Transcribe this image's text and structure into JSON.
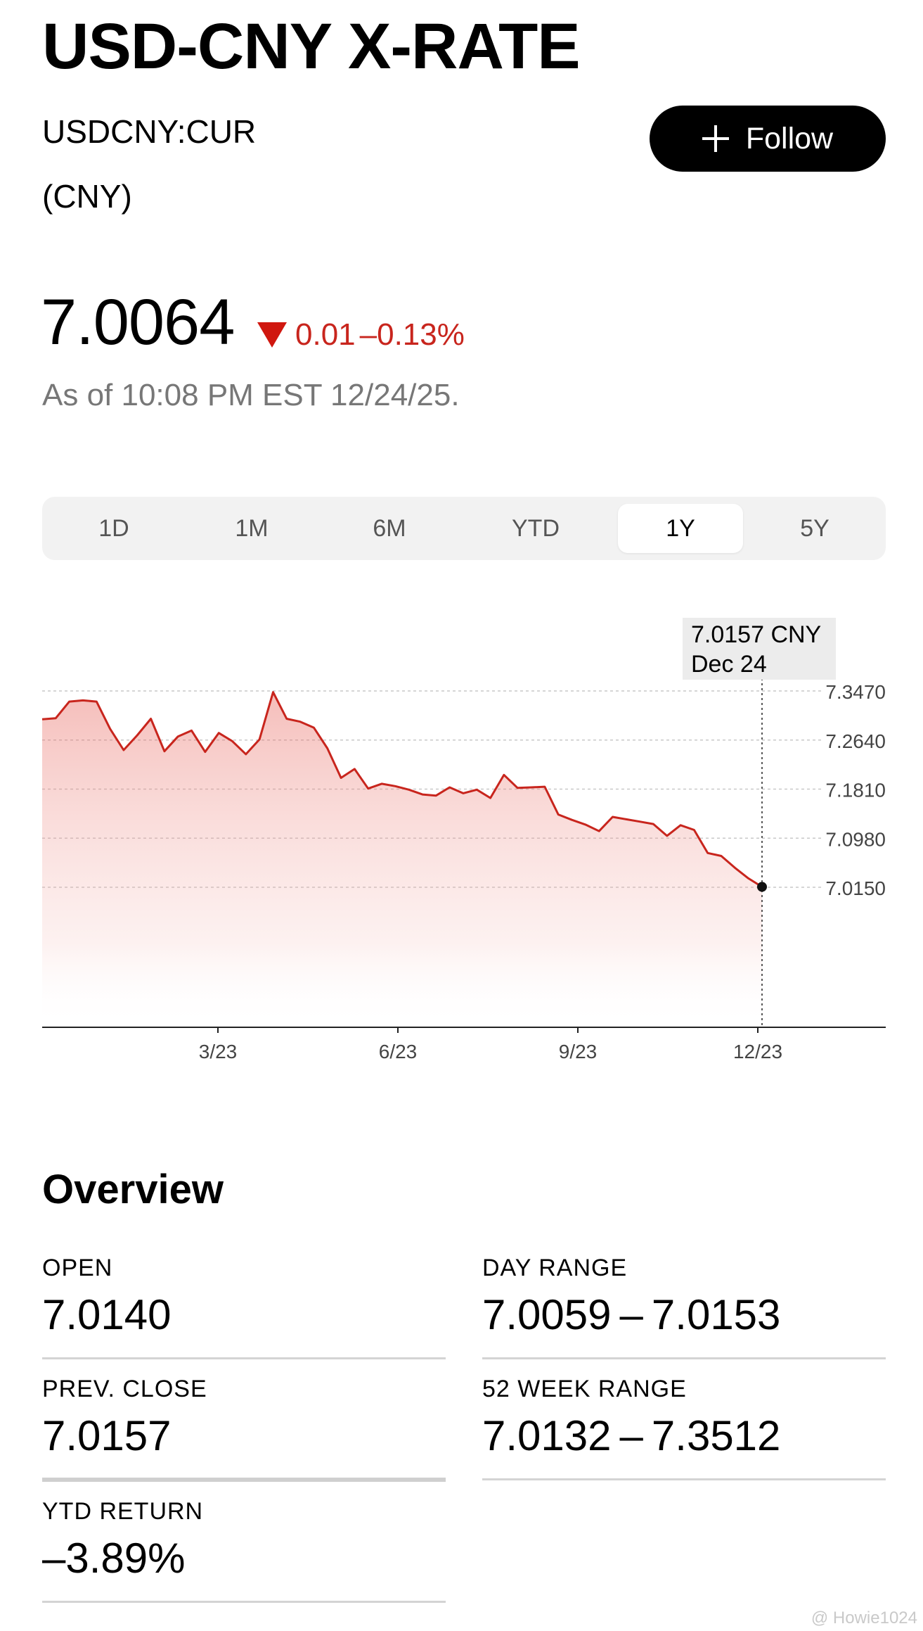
{
  "header": {
    "title": "USD-CNY X-RATE",
    "ticker": "USDCNY:CUR",
    "unit": "(CNY)",
    "follow_label": "Follow"
  },
  "quote": {
    "price": "7.0064",
    "change": "0.01",
    "change_pct": "–0.13%",
    "direction": "down",
    "as_of": "As of 10:08 PM EST 12/24/25.",
    "down_color": "#c8251d"
  },
  "range_tabs": {
    "items": [
      "1D",
      "1M",
      "6M",
      "YTD",
      "1Y",
      "5Y"
    ],
    "selected": "1Y"
  },
  "chart_data": {
    "type": "area",
    "series": [
      {
        "x": [
          "Dec 24",
          "Jan 2",
          "Jan 9",
          "Jan 16",
          "Jan 23",
          "Jan 30",
          "Feb 6",
          "Feb 13",
          "Feb 20",
          "Feb 27",
          "Mar 6",
          "Mar 13",
          "Mar 20",
          "Mar 27",
          "Apr 3",
          "Apr 8",
          "Apr 10",
          "Apr 17",
          "Apr 24",
          "May 1",
          "May 8",
          "May 15",
          "May 22",
          "May 29",
          "Jun 5",
          "Jun 12",
          "Jun 19",
          "Jun 26",
          "Jul 3",
          "Jul 10",
          "Jul 17",
          "Jul 24",
          "Jul 31",
          "Aug 7",
          "Aug 14",
          "Aug 21",
          "Aug 28",
          "Sep 4",
          "Sep 11",
          "Sep 18",
          "Sep 25",
          "Oct 2",
          "Oct 9",
          "Oct 16",
          "Oct 23",
          "Oct 30",
          "Nov 6",
          "Nov 13",
          "Nov 20",
          "Nov 27",
          "Dec 4",
          "Dec 11",
          "Dec 18",
          "Dec 24"
        ],
        "values": [
          7.299,
          7.301,
          7.329,
          7.331,
          7.329,
          7.283,
          7.247,
          7.272,
          7.3,
          7.245,
          7.27,
          7.28,
          7.244,
          7.276,
          7.262,
          7.24,
          7.265,
          7.345,
          7.3,
          7.295,
          7.285,
          7.25,
          7.2,
          7.215,
          7.182,
          7.19,
          7.186,
          7.18,
          7.172,
          7.17,
          7.184,
          7.174,
          7.18,
          7.166,
          7.205,
          7.183,
          7.184,
          7.185,
          7.138,
          7.129,
          7.121,
          7.11,
          7.134,
          7.13,
          7.126,
          7.122,
          7.102,
          7.12,
          7.112,
          7.073,
          7.068,
          7.048,
          7.03,
          7.0157
        ]
      }
    ],
    "x_ticks": [
      "3/23",
      "6/23",
      "9/23",
      "12/23"
    ],
    "y_ticks": [
      "7.3470",
      "7.2640",
      "7.1810",
      "7.0980",
      "7.0150"
    ],
    "ylim": [
      6.952,
      7.347
    ],
    "grid": true,
    "line_color": "#c8251d",
    "tooltip": {
      "value": "7.0157 CNY",
      "date": "Dec 24"
    }
  },
  "overview": {
    "title": "Overview",
    "open_label": "OPEN",
    "open_value": "7.0140",
    "day_range_label": "DAY RANGE",
    "day_range_value": "7.0059 – 7.0153",
    "prev_close_label": "PREV. CLOSE",
    "prev_close_value": "7.0157",
    "week52_label": "52 WEEK RANGE",
    "week52_value": "7.0132 – 7.3512",
    "ytd_label": "YTD RETURN",
    "ytd_value": "–3.89%"
  },
  "watermark": "@ Howie1024"
}
